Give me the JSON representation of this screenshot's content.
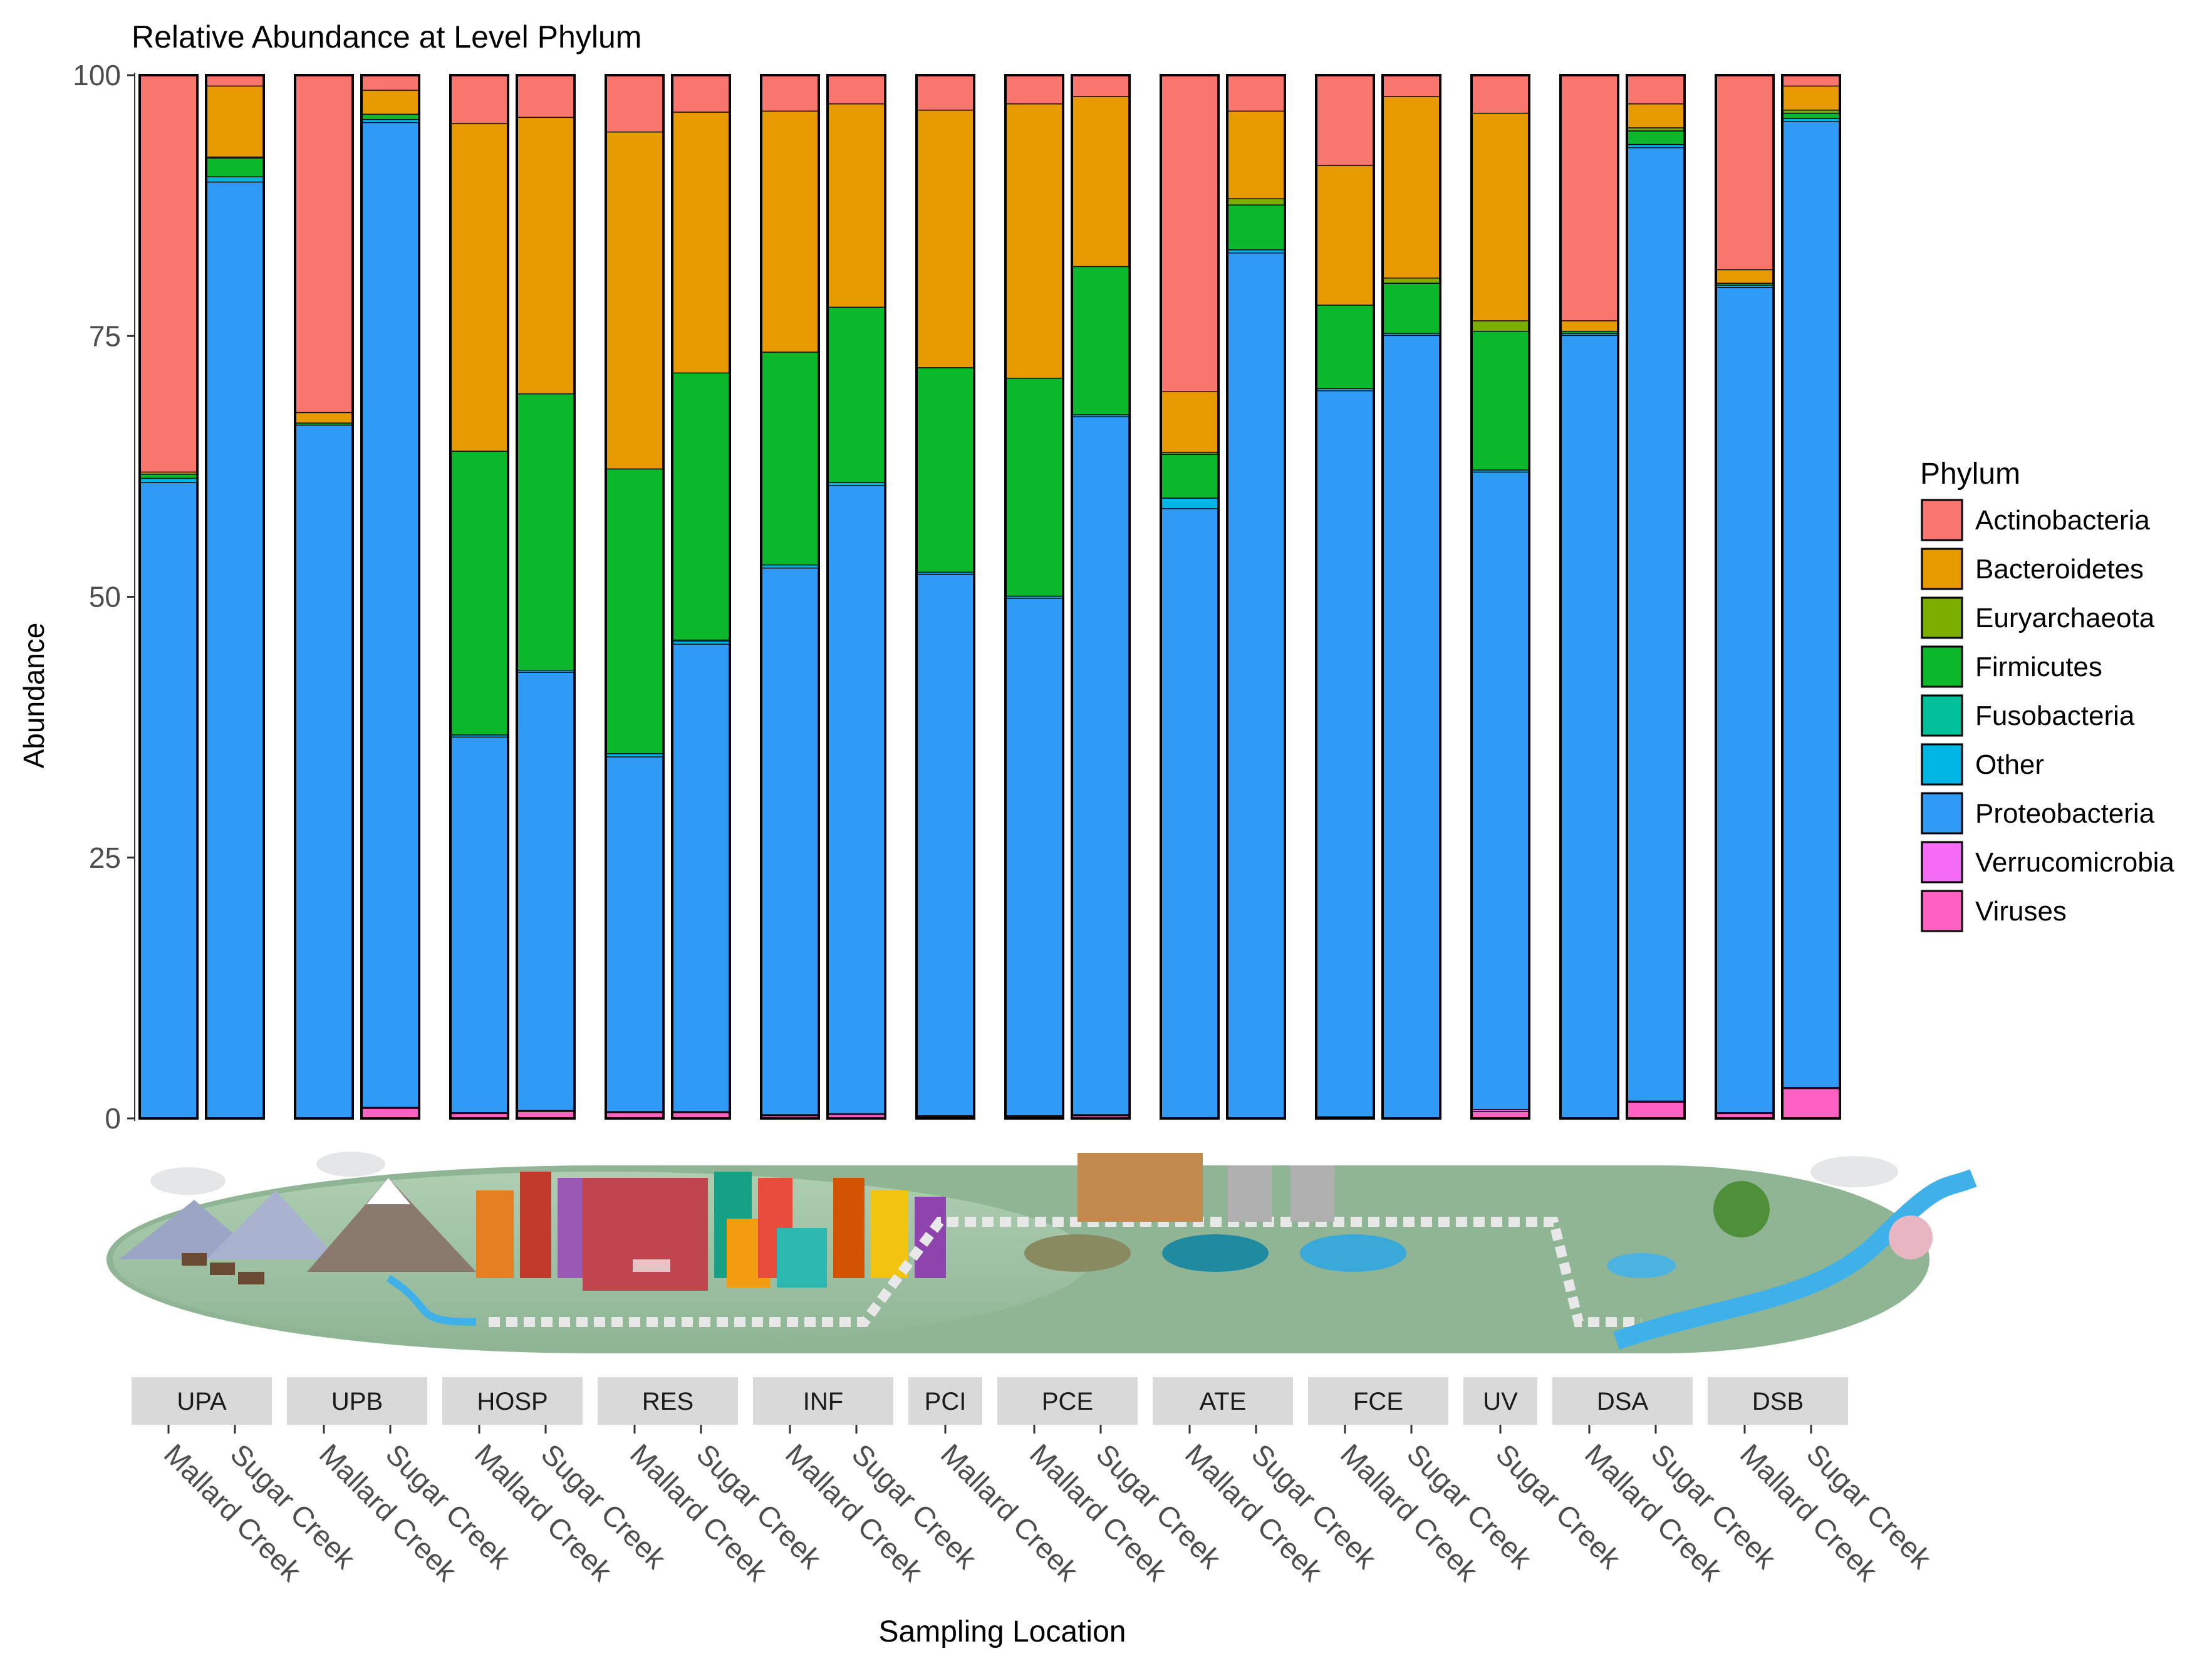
{
  "chart_data": {
    "type": "bar",
    "stacked": true,
    "title": "Relative Abundance at Level Phylum",
    "xlabel": "Sampling Location",
    "ylabel": "Abundance",
    "ylim": [
      0,
      100
    ],
    "yticks": [
      "0",
      "25",
      "50",
      "75",
      "100"
    ],
    "grid": false,
    "legend": {
      "title": "Phylum",
      "placement": "right",
      "entries": [
        "Actinobacteria",
        "Bacteroidetes",
        "Euryarchaeota",
        "Firmicutes",
        "Fusobacteria",
        "Other",
        "Proteobacteria",
        "Verrucomicrobia",
        "Viruses"
      ]
    },
    "colors": {
      "Actinobacteria": "#F8766D",
      "Bacteroidetes": "#E69A00",
      "Euryarchaeota": "#7CAE00",
      "Firmicutes": "#0CB82B",
      "Fusobacteria": "#00C19A",
      "Other": "#00B4E4",
      "Proteobacteria": "#2F9BF6",
      "Verrucomicrobia": "#F46BF5",
      "Viruses": "#FF61C3"
    },
    "stack_order": [
      "Viruses",
      "Verrucomicrobia",
      "Proteobacteria",
      "Other",
      "Fusobacteria",
      "Firmicutes",
      "Euryarchaeota",
      "Bacteroidetes",
      "Actinobacteria"
    ],
    "groups": [
      {
        "label": "UPA",
        "bars": [
          {
            "category": "Mallard Creek",
            "values": {
              "Viruses": 0,
              "Verrucomicrobia": 0,
              "Proteobacteria": 61,
              "Other": 0.4,
              "Fusobacteria": 0,
              "Firmicutes": 0.4,
              "Euryarchaeota": 0,
              "Bacteroidetes": 0.2,
              "Actinobacteria": 38
            }
          },
          {
            "category": "Sugar Creek",
            "values": {
              "Viruses": 0,
              "Verrucomicrobia": 0,
              "Proteobacteria": 89.8,
              "Other": 0.5,
              "Fusobacteria": 0,
              "Firmicutes": 1.8,
              "Euryarchaeota": 0.1,
              "Bacteroidetes": 6.8,
              "Actinobacteria": 1
            }
          }
        ]
      },
      {
        "label": "UPB",
        "bars": [
          {
            "category": "Mallard Creek",
            "values": {
              "Viruses": 0,
              "Verrucomicrobia": 0,
              "Proteobacteria": 66.5,
              "Other": 0,
              "Fusobacteria": 0,
              "Firmicutes": 0.2,
              "Euryarchaeota": 0,
              "Bacteroidetes": 1,
              "Actinobacteria": 32.3
            }
          },
          {
            "category": "Sugar Creek",
            "values": {
              "Viruses": 1,
              "Verrucomicrobia": 0.1,
              "Proteobacteria": 94.4,
              "Other": 0.3,
              "Fusobacteria": 0,
              "Firmicutes": 0.5,
              "Euryarchaeota": 0,
              "Bacteroidetes": 2.3,
              "Actinobacteria": 1.4
            }
          }
        ]
      },
      {
        "label": "HOSP",
        "bars": [
          {
            "category": "Mallard Creek",
            "values": {
              "Viruses": 0.5,
              "Verrucomicrobia": 0.1,
              "Proteobacteria": 36,
              "Other": 0.2,
              "Fusobacteria": 0,
              "Firmicutes": 27.2,
              "Euryarchaeota": 0,
              "Bacteroidetes": 31.4,
              "Actinobacteria": 4.6
            }
          },
          {
            "category": "Sugar Creek",
            "values": {
              "Viruses": 0.7,
              "Verrucomicrobia": 0.1,
              "Proteobacteria": 42,
              "Other": 0.2,
              "Fusobacteria": 0,
              "Firmicutes": 26.5,
              "Euryarchaeota": 0,
              "Bacteroidetes": 26.5,
              "Actinobacteria": 4
            }
          }
        ]
      },
      {
        "label": "RES",
        "bars": [
          {
            "category": "Mallard Creek",
            "values": {
              "Viruses": 0.6,
              "Verrucomicrobia": 0.1,
              "Proteobacteria": 34,
              "Other": 0.3,
              "Fusobacteria": 0,
              "Firmicutes": 27.3,
              "Euryarchaeota": 0,
              "Bacteroidetes": 32.3,
              "Actinobacteria": 5.4
            }
          },
          {
            "category": "Sugar Creek",
            "values": {
              "Viruses": 0.6,
              "Verrucomicrobia": 0.1,
              "Proteobacteria": 44.8,
              "Other": 0.3,
              "Fusobacteria": 0.1,
              "Firmicutes": 25.6,
              "Euryarchaeota": 0,
              "Bacteroidetes": 25,
              "Actinobacteria": 3.5
            }
          }
        ]
      },
      {
        "label": "INF",
        "bars": [
          {
            "category": "Mallard Creek",
            "values": {
              "Viruses": 0.3,
              "Verrucomicrobia": 0.1,
              "Proteobacteria": 52.4,
              "Other": 0.3,
              "Fusobacteria": 0,
              "Firmicutes": 20.4,
              "Euryarchaeota": 0,
              "Bacteroidetes": 23.1,
              "Actinobacteria": 3.4
            }
          },
          {
            "category": "Sugar Creek",
            "values": {
              "Viruses": 0.4,
              "Verrucomicrobia": 0.1,
              "Proteobacteria": 60.2,
              "Other": 0.3,
              "Fusobacteria": 0,
              "Firmicutes": 16.8,
              "Euryarchaeota": 0,
              "Bacteroidetes": 19.5,
              "Actinobacteria": 2.7
            }
          }
        ]
      },
      {
        "label": "PCI",
        "bars": [
          {
            "category": "Mallard Creek",
            "values": {
              "Viruses": 0.2,
              "Verrucomicrobia": 0.1,
              "Proteobacteria": 51.9,
              "Other": 0.2,
              "Fusobacteria": 0,
              "Firmicutes": 19.6,
              "Euryarchaeota": 0,
              "Bacteroidetes": 24.7,
              "Actinobacteria": 3.3
            }
          }
        ]
      },
      {
        "label": "PCE",
        "bars": [
          {
            "category": "Mallard Creek",
            "values": {
              "Viruses": 0.2,
              "Verrucomicrobia": 0.1,
              "Proteobacteria": 49.6,
              "Other": 0.2,
              "Fusobacteria": 0,
              "Firmicutes": 20.9,
              "Euryarchaeota": 0,
              "Bacteroidetes": 26.3,
              "Actinobacteria": 2.7
            }
          },
          {
            "category": "Sugar Creek",
            "values": {
              "Viruses": 0.3,
              "Verrucomicrobia": 0.1,
              "Proteobacteria": 66.9,
              "Other": 0.2,
              "Fusobacteria": 0,
              "Firmicutes": 14.2,
              "Euryarchaeota": 0,
              "Bacteroidetes": 16.3,
              "Actinobacteria": 2
            }
          }
        ]
      },
      {
        "label": "ATE",
        "bars": [
          {
            "category": "Mallard Creek",
            "values": {
              "Viruses": 0,
              "Verrucomicrobia": 0.1,
              "Proteobacteria": 58.4,
              "Other": 1,
              "Fusobacteria": 0,
              "Firmicutes": 4.2,
              "Euryarchaeota": 0.2,
              "Bacteroidetes": 5.8,
              "Actinobacteria": 30.3
            }
          },
          {
            "category": "Sugar Creek",
            "values": {
              "Viruses": 0,
              "Verrucomicrobia": 0.1,
              "Proteobacteria": 82.9,
              "Other": 0.3,
              "Fusobacteria": 0,
              "Firmicutes": 4.3,
              "Euryarchaeota": 0.6,
              "Bacteroidetes": 8.4,
              "Actinobacteria": 3.4
            }
          }
        ]
      },
      {
        "label": "FCE",
        "bars": [
          {
            "category": "Mallard Creek",
            "values": {
              "Viruses": 0.1,
              "Verrucomicrobia": 0.1,
              "Proteobacteria": 69.6,
              "Other": 0.2,
              "Fusobacteria": 0,
              "Firmicutes": 8,
              "Euryarchaeota": 0,
              "Bacteroidetes": 13.4,
              "Actinobacteria": 8.6
            }
          },
          {
            "category": "Sugar Creek",
            "values": {
              "Viruses": 0,
              "Verrucomicrobia": 0.1,
              "Proteobacteria": 75,
              "Other": 0.2,
              "Fusobacteria": 0,
              "Firmicutes": 4.8,
              "Euryarchaeota": 0.5,
              "Bacteroidetes": 17.4,
              "Actinobacteria": 2
            }
          }
        ]
      },
      {
        "label": "UV",
        "bars": [
          {
            "category": "Sugar Creek",
            "values": {
              "Viruses": 0.7,
              "Verrucomicrobia": 0.2,
              "Proteobacteria": 61.1,
              "Other": 0.2,
              "Fusobacteria": 0,
              "Firmicutes": 13.3,
              "Euryarchaeota": 1,
              "Bacteroidetes": 19.9,
              "Actinobacteria": 3.6
            }
          }
        ]
      },
      {
        "label": "DSA",
        "bars": [
          {
            "category": "Mallard Creek",
            "values": {
              "Viruses": 0,
              "Verrucomicrobia": 0.1,
              "Proteobacteria": 75,
              "Other": 0.2,
              "Fusobacteria": 0,
              "Firmicutes": 0.2,
              "Euryarchaeota": 0,
              "Bacteroidetes": 1,
              "Actinobacteria": 23.5
            }
          },
          {
            "category": "Sugar Creek",
            "values": {
              "Viruses": 1.6,
              "Verrucomicrobia": 0.1,
              "Proteobacteria": 91.4,
              "Other": 0.3,
              "Fusobacteria": 0,
              "Firmicutes": 1.3,
              "Euryarchaeota": 0.3,
              "Bacteroidetes": 2.3,
              "Actinobacteria": 2.7
            }
          }
        ]
      },
      {
        "label": "DSB",
        "bars": [
          {
            "category": "Mallard Creek",
            "values": {
              "Viruses": 0.5,
              "Verrucomicrobia": 0.1,
              "Proteobacteria": 79.1,
              "Other": 0.2,
              "Fusobacteria": 0,
              "Firmicutes": 0.2,
              "Euryarchaeota": 0,
              "Bacteroidetes": 1.3,
              "Actinobacteria": 18.6
            }
          },
          {
            "category": "Sugar Creek",
            "values": {
              "Viruses": 2.9,
              "Verrucomicrobia": 0.1,
              "Proteobacteria": 92.6,
              "Other": 0.3,
              "Fusobacteria": 0,
              "Firmicutes": 0.5,
              "Euryarchaeota": 0.3,
              "Bacteroidetes": 2.3,
              "Actinobacteria": 1
            }
          }
        ]
      }
    ]
  }
}
